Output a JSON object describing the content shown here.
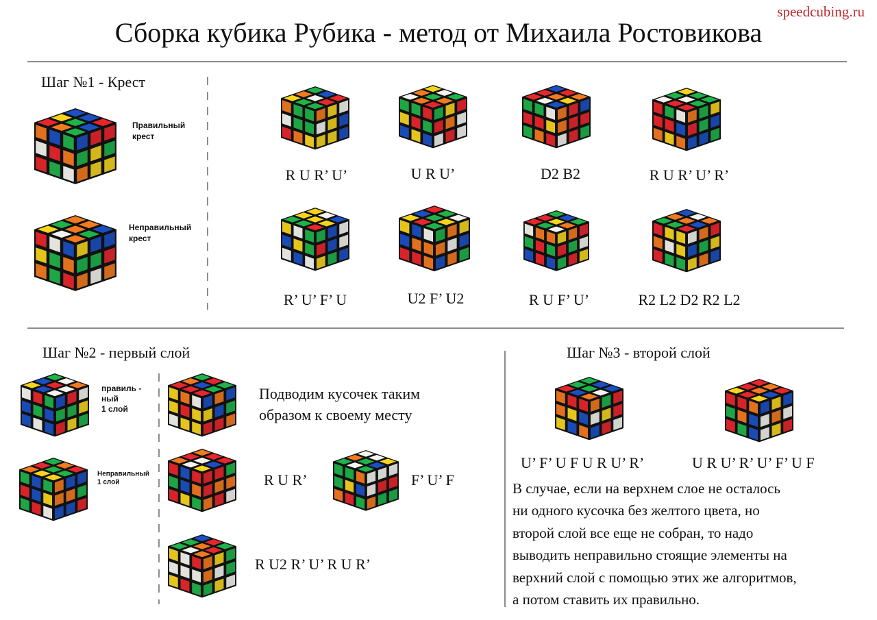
{
  "header": {
    "site": "speedcubing.ru",
    "title": "Сборка кубика Рубика - метод от Михаила Ростовикова"
  },
  "step1": {
    "title": "Шаг №1 - Крест",
    "correct_label": [
      "Правильный",
      "крест"
    ],
    "incorrect_label": [
      "Неправильный",
      "крест"
    ],
    "algorithms": [
      "R U R’ U’",
      "U R U’",
      "D2 B2",
      "R U R’ U’ R’",
      "R’ U’ F’ U",
      "U2 F’ U2",
      "R U F’ U’",
      "R2 L2 D2 R2 L2"
    ]
  },
  "step2": {
    "title": "Шаг №2 - первый слой",
    "correct_label": [
      "правиль -",
      "ный",
      "1 слой"
    ],
    "incorrect_label": [
      "Неправильный",
      "1 слой"
    ],
    "instruction": [
      "Подводим кусочек таким",
      "образом к своему месту"
    ],
    "algorithms": [
      "R U R’",
      "F’ U’ F",
      "R U2 R’ U’ R U R’"
    ]
  },
  "step3": {
    "title": "Шаг №3 - второй слой",
    "algorithms": [
      "U’ F’ U F U R U’ R’",
      "U R U’ R’ U’ F’ U F"
    ],
    "note": [
      "В случае, если на верхнем слое не осталось",
      "ни одного кусочка без желтого цвета, но",
      "второй слой все еще не собран, то надо",
      "выводить неправильно стоящие элементы на",
      "верхний слой с помощью этих же алгоритмов,",
      "а потом ставить их правильно."
    ]
  }
}
